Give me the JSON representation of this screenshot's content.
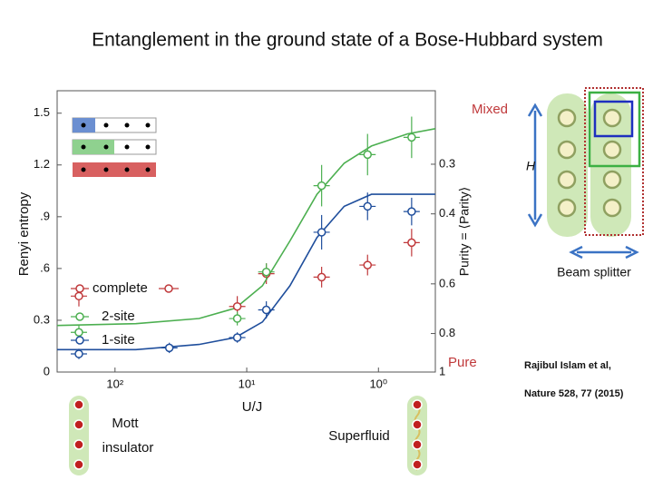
{
  "slide": {
    "title": "Entanglement in the ground state of a Bose-Hubbard system",
    "left_phase": [
      "Mott",
      "insulator"
    ],
    "right_phase": "Superfluid",
    "operator": "H",
    "beam_splitter": "Beam splitter",
    "citation": [
      "Rajibul Islam et al,",
      "Nature 528, 77 (2015)"
    ]
  },
  "chart_data": {
    "type": "scatter",
    "xlabel": "U/J",
    "ylabel": "Renyi entropy",
    "y2label": "Purity = ⟨Parity⟩",
    "annotations": [
      "Mixed",
      "Pure"
    ],
    "xscale": "log",
    "xlim": [
      275,
      0.37
    ],
    "xticks": [
      {
        "value": 100,
        "label": "10²"
      },
      {
        "value": 10,
        "label": "10¹"
      },
      {
        "value": 1,
        "label": "10⁰"
      }
    ],
    "ylim": [
      0,
      1.63
    ],
    "yticks": [
      0,
      0.3,
      {
        "value": 0.6,
        "label": ".6"
      },
      {
        "value": 0.9,
        "label": ".9"
      },
      1.2,
      1.5
    ],
    "y2scale": "neglog",
    "y2lim": [
      1,
      0.196
    ],
    "y2ticks": [
      0.3,
      0.4,
      0.6,
      0.8,
      1
    ],
    "series": [
      {
        "name": "complete",
        "color": "#c0393b",
        "x": [
          188,
          11.8,
          7.1,
          2.7,
          1.21,
          0.56
        ],
        "values": [
          0.44,
          0.38,
          0.57,
          0.55,
          0.62,
          0.75
        ],
        "errors": [
          0.06,
          0.06,
          0.06,
          0.06,
          0.06,
          0.08
        ]
      },
      {
        "name": "2-site",
        "color": "#4caf50",
        "x": [
          188,
          11.8,
          7.1,
          2.7,
          1.21,
          0.56
        ],
        "values": [
          0.23,
          0.31,
          0.58,
          1.08,
          1.26,
          1.36
        ],
        "errors": [
          0.04,
          0.04,
          0.05,
          0.12,
          0.12,
          0.12
        ]
      },
      {
        "name": "1-site",
        "color": "#1f4e9c",
        "x": [
          188,
          38.7,
          11.8,
          7.1,
          2.7,
          1.21,
          0.56
        ],
        "values": [
          0.105,
          0.14,
          0.2,
          0.36,
          0.81,
          0.96,
          0.93
        ],
        "errors": [
          0.03,
          0.03,
          0.03,
          0.05,
          0.1,
          0.08,
          0.08
        ]
      }
    ],
    "fits": [
      {
        "color": "#4caf50",
        "x": [
          275,
          69.5,
          23,
          12.2,
          7.6,
          4.7,
          2.93,
          1.82,
          1.13,
          0.6,
          0.37
        ],
        "values": [
          0.27,
          0.28,
          0.31,
          0.37,
          0.5,
          0.76,
          1.03,
          1.21,
          1.31,
          1.38,
          1.41
        ]
      },
      {
        "color": "#1f4e9c",
        "x": [
          275,
          69.5,
          23,
          12.2,
          7.6,
          4.7,
          2.93,
          1.82,
          1.13,
          0.6,
          0.37
        ],
        "values": [
          0.13,
          0.13,
          0.16,
          0.2,
          0.29,
          0.5,
          0.78,
          0.96,
          1.03,
          1.03,
          1.03
        ]
      }
    ]
  }
}
